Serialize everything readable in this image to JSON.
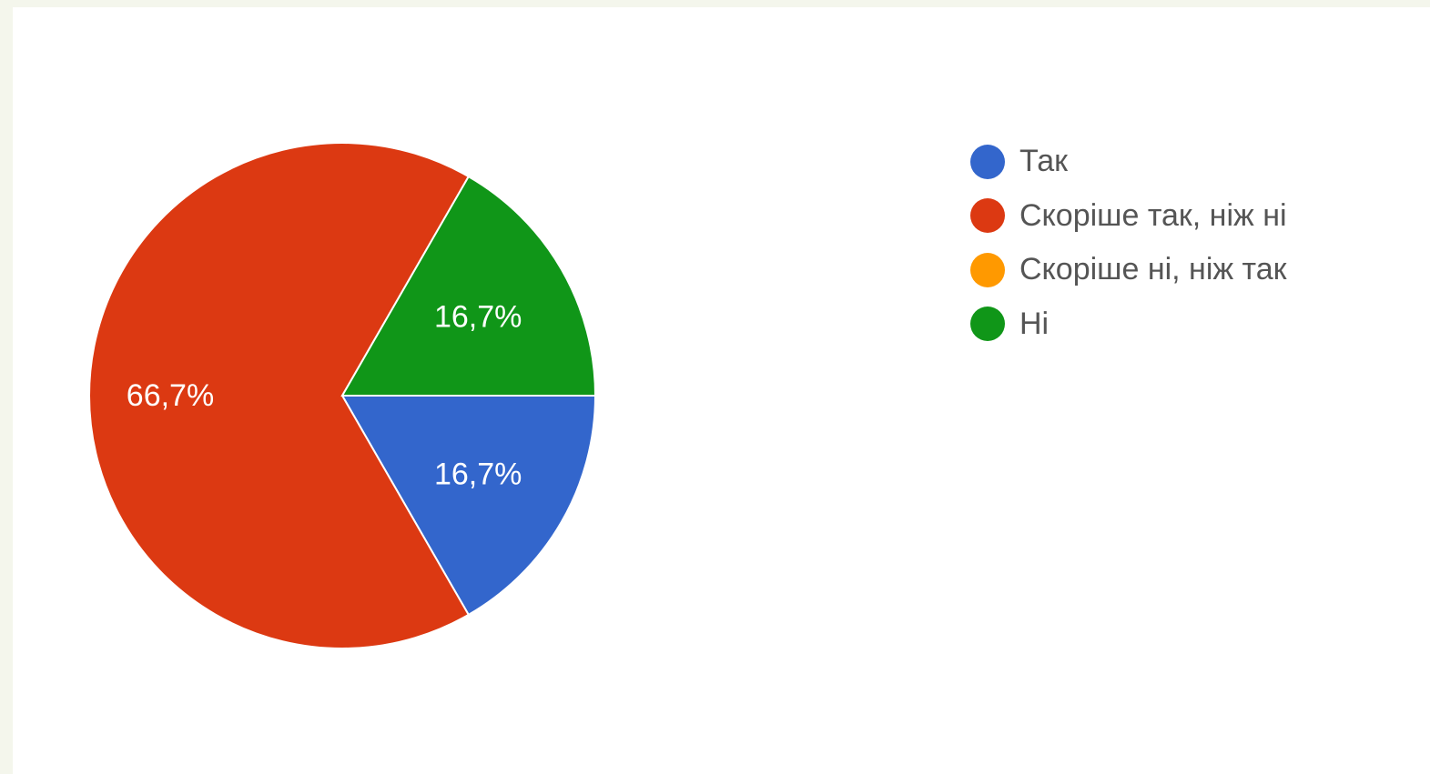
{
  "chart_data": {
    "type": "pie",
    "categories": [
      "Так",
      "Скоріше так, ніж ні",
      "Скоріше ні, ніж так",
      "Ні"
    ],
    "values": [
      16.7,
      66.7,
      0,
      16.7
    ],
    "value_labels": [
      "16,7%",
      "66,7%",
      "",
      "16,7%"
    ],
    "colors": [
      "#3366cc",
      "#dc3912",
      "#ff9900",
      "#109618"
    ],
    "legend_position": "right"
  }
}
